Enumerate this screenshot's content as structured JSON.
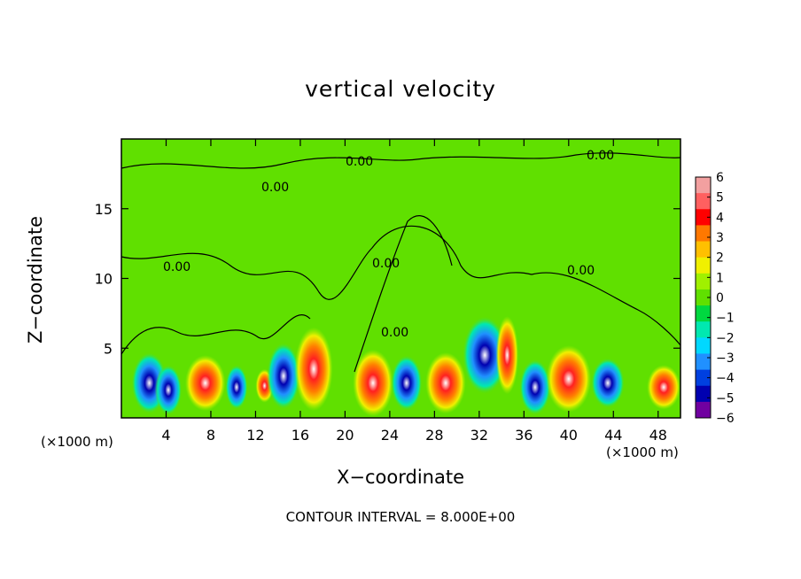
{
  "chart_data": {
    "type": "heatmap",
    "title": "vertical velocity",
    "xlabel": "X−coordinate",
    "ylabel": "Z−coordinate",
    "x_unit_left": "(×1000 m)",
    "x_unit_right": "(×1000 m)",
    "footer": "CONTOUR INTERVAL = 8.000E+00",
    "xlim": [
      0,
      50
    ],
    "ylim": [
      0,
      20
    ],
    "xticks": [
      "4",
      "8",
      "12",
      "16",
      "20",
      "24",
      "28",
      "32",
      "36",
      "40",
      "44",
      "48"
    ],
    "xtick_values": [
      4,
      8,
      12,
      16,
      20,
      24,
      28,
      32,
      36,
      40,
      44,
      48
    ],
    "yticks": [
      "5",
      "10",
      "15"
    ],
    "ytick_values": [
      5,
      10,
      15
    ],
    "contour_label": "0.00",
    "colorbar": {
      "ticks": [
        "6",
        "5",
        "4",
        "3",
        "2",
        "1",
        "0",
        "−1",
        "−2",
        "−3",
        "−4",
        "−5",
        "−6"
      ],
      "range": [
        -6,
        6
      ],
      "colors": [
        "#f2a0a0",
        "#ff6060",
        "#ff0000",
        "#ff7800",
        "#ffc000",
        "#f0f000",
        "#a0f000",
        "#60e000",
        "#00d840",
        "#00e8b0",
        "#00d8ff",
        "#2090ff",
        "#0040e0",
        "#0000b0",
        "#7000a0"
      ]
    },
    "cells": [
      {
        "x": 2.5,
        "z": 2.5,
        "w": -5,
        "rx": 1.6,
        "rz": 2.2
      },
      {
        "x": 4.2,
        "z": 2.0,
        "w": -4,
        "rx": 1.2,
        "rz": 1.8
      },
      {
        "x": 7.5,
        "z": 2.5,
        "w": 6,
        "rx": 1.8,
        "rz": 2.0
      },
      {
        "x": 10.3,
        "z": 2.2,
        "w": -4,
        "rx": 1.0,
        "rz": 1.6
      },
      {
        "x": 12.8,
        "z": 2.3,
        "w": 4,
        "rx": 0.8,
        "rz": 1.2
      },
      {
        "x": 14.5,
        "z": 3.0,
        "w": -6,
        "rx": 1.5,
        "rz": 2.4
      },
      {
        "x": 17.2,
        "z": 3.5,
        "w": 6,
        "rx": 1.7,
        "rz": 3.0
      },
      {
        "x": 22.5,
        "z": 2.5,
        "w": 6,
        "rx": 1.8,
        "rz": 2.4
      },
      {
        "x": 25.5,
        "z": 2.5,
        "w": -5,
        "rx": 1.4,
        "rz": 2.0
      },
      {
        "x": 29.0,
        "z": 2.5,
        "w": 6,
        "rx": 1.8,
        "rz": 2.2
      },
      {
        "x": 32.5,
        "z": 4.5,
        "w": -4,
        "rx": 2.0,
        "rz": 2.8
      },
      {
        "x": 34.5,
        "z": 4.5,
        "w": 4,
        "rx": 1.0,
        "rz": 2.8
      },
      {
        "x": 37.0,
        "z": 2.2,
        "w": -6,
        "rx": 1.4,
        "rz": 2.0
      },
      {
        "x": 40.0,
        "z": 2.8,
        "w": 6,
        "rx": 2.0,
        "rz": 2.4
      },
      {
        "x": 43.5,
        "z": 2.5,
        "w": -4,
        "rx": 1.5,
        "rz": 1.8
      },
      {
        "x": 48.5,
        "z": 2.2,
        "w": 4,
        "rx": 1.5,
        "rz": 1.6
      }
    ],
    "grid": false
  }
}
